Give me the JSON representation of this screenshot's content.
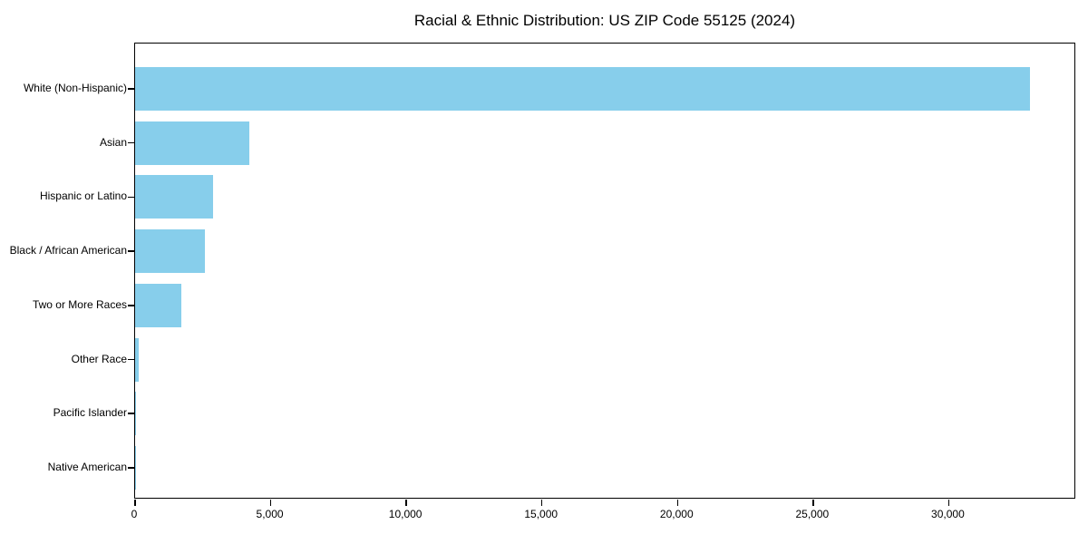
{
  "chart_data": {
    "type": "bar",
    "orientation": "horizontal",
    "title": "Racial & Ethnic Distribution: US ZIP Code 55125 (2024)",
    "categories": [
      "White (Non-Hispanic)",
      "Asian",
      "Hispanic or Latino",
      "Black / African American",
      "Two or More Races",
      "Other Race",
      "Pacific Islander",
      "Native American"
    ],
    "values": [
      33000,
      4200,
      2860,
      2560,
      1720,
      120,
      30,
      20
    ],
    "xlabel": "",
    "ylabel": "",
    "xlim": [
      0,
      34700
    ],
    "xticks": [
      0,
      5000,
      10000,
      15000,
      20000,
      25000,
      30000
    ],
    "xtick_labels": [
      "0",
      "5,000",
      "10,000",
      "15,000",
      "20,000",
      "25,000",
      "30,000"
    ],
    "bar_color": "#87CEEB",
    "axis_color": "#000000",
    "text_color": "#000000",
    "background": "#FFFFFF",
    "grid": false,
    "legend": null
  }
}
